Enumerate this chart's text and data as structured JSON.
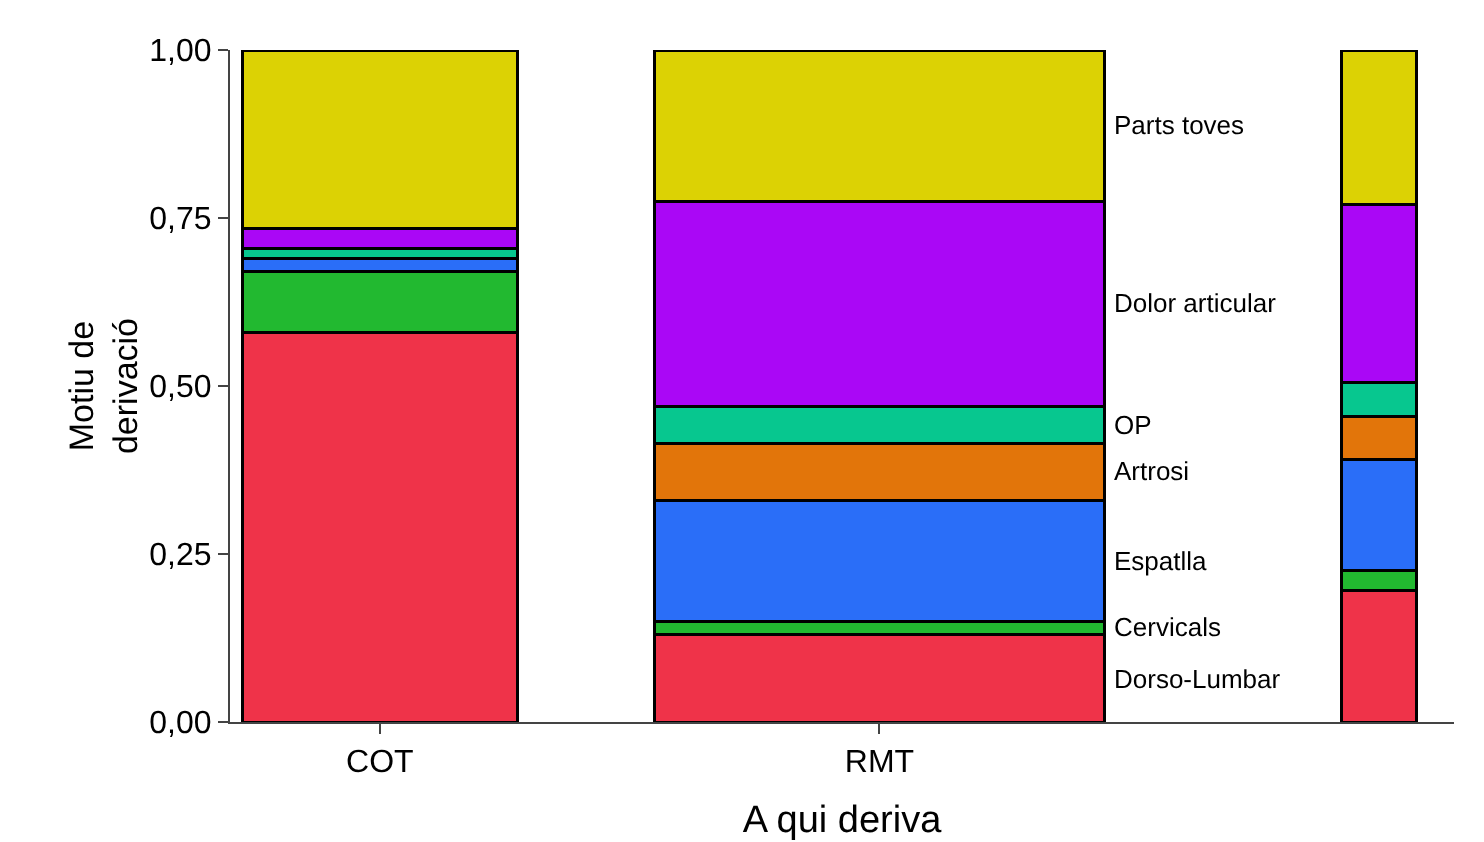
{
  "chart_data": {
    "type": "bar",
    "stacked": true,
    "xlabel": "A qui deriva",
    "ylabel": "Motiu de\nderivació",
    "categories": [
      "COT",
      "RMT",
      null
    ],
    "series": [
      {
        "name": "Dorso-Lumbar",
        "color": "#ef3349",
        "values": [
          0.58,
          0.13,
          0.195
        ]
      },
      {
        "name": "Cervicals",
        "color": "#22b930",
        "values": [
          0.09,
          0.02,
          0.03
        ]
      },
      {
        "name": "Espatlla",
        "color": "#2a6ef8",
        "values": [
          0.02,
          0.18,
          0.165
        ]
      },
      {
        "name": "Artrosi",
        "color": "#e2750a",
        "values": [
          0,
          0.085,
          0.065
        ]
      },
      {
        "name": "OP",
        "color": "#07c78f",
        "values": [
          0.015,
          0.055,
          0.05
        ]
      },
      {
        "name": "Dolor articular",
        "color": "#aa07f6",
        "values": [
          0.03,
          0.305,
          0.265
        ]
      },
      {
        "name": "Parts toves",
        "color": "#dcd204",
        "values": [
          0.265,
          0.225,
          0.23
        ]
      }
    ],
    "ylim": [
      0,
      1
    ],
    "yticks": [
      {
        "value": 0,
        "label": "0,00"
      },
      {
        "value": 0.25,
        "label": "0,25"
      },
      {
        "value": 0.5,
        "label": "0,50"
      },
      {
        "value": 0.75,
        "label": "0,75"
      },
      {
        "value": 1,
        "label": "1,00"
      }
    ],
    "grid": false,
    "legend": false
  }
}
